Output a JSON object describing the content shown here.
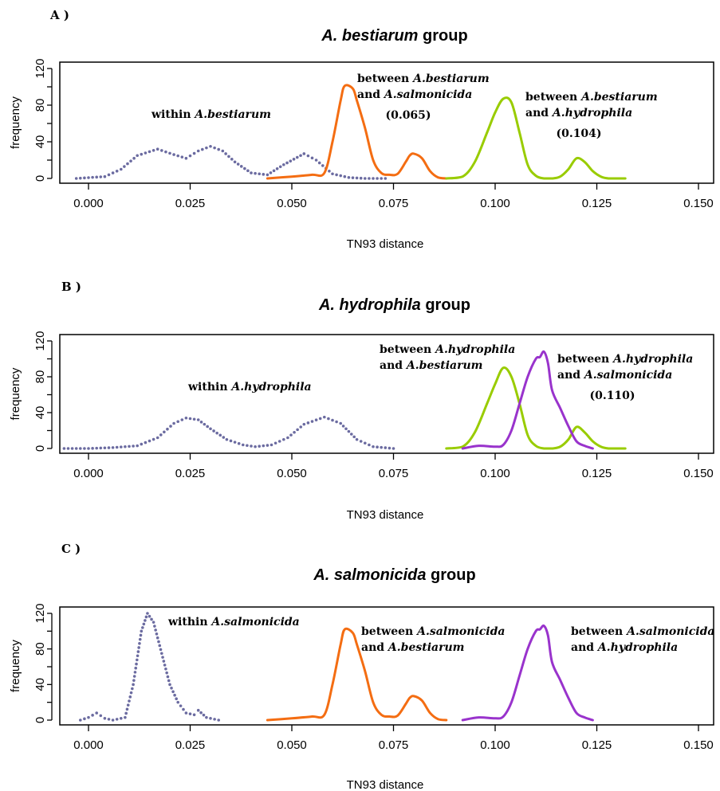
{
  "chart_data": [
    {
      "type": "line",
      "panel_label": "A )",
      "title_italic": "A. bestiarum",
      "title_rest": " group",
      "xlabel": "TN93 distance",
      "ylabel": "frequency",
      "xlim": [
        -0.005,
        0.155
      ],
      "ylim": [
        0,
        120
      ],
      "x_ticks": [
        "0.000",
        "0.025",
        "0.050",
        "0.075",
        "0.100",
        "0.125",
        "0.150"
      ],
      "y_ticks": [
        "0",
        "40",
        "80",
        "120"
      ],
      "series": [
        {
          "color": "#6b6ba0",
          "style": "dotted",
          "x": [
            -0.003,
            0.004,
            0.008,
            0.012,
            0.017,
            0.021,
            0.024,
            0.027,
            0.03,
            0.033,
            0.036,
            0.04,
            0.044,
            0.048,
            0.053,
            0.056,
            0.06,
            0.064,
            0.068,
            0.073
          ],
          "y": [
            0,
            2,
            10,
            25,
            32,
            26,
            22,
            30,
            35,
            30,
            18,
            6,
            4,
            15,
            27,
            20,
            5,
            1,
            0,
            0
          ]
        },
        {
          "color": "#f46d12",
          "style": "solid",
          "x": [
            0.044,
            0.05,
            0.055,
            0.058,
            0.06,
            0.062,
            0.063,
            0.065,
            0.066,
            0.068,
            0.07,
            0.072,
            0.074,
            0.076,
            0.078,
            0.079,
            0.08,
            0.082,
            0.084,
            0.086,
            0.088
          ],
          "y": [
            0,
            2,
            4,
            6,
            40,
            85,
            101,
            98,
            85,
            55,
            20,
            6,
            4,
            5,
            18,
            25,
            27,
            22,
            8,
            1,
            0
          ]
        },
        {
          "color": "#99cc00",
          "style": "solid",
          "x": [
            0.088,
            0.092,
            0.095,
            0.098,
            0.1,
            0.102,
            0.104,
            0.106,
            0.108,
            0.11,
            0.112,
            0.114,
            0.116,
            0.118,
            0.12,
            0.122,
            0.124,
            0.126,
            0.128,
            0.132
          ],
          "y": [
            0,
            2,
            18,
            50,
            72,
            87,
            83,
            50,
            15,
            3,
            0,
            0,
            2,
            10,
            22,
            18,
            8,
            2,
            0,
            0
          ]
        }
      ],
      "annotations": [
        {
          "lines": [
            {
              "plain": "within ",
              "italic": "A.bestiarum"
            }
          ]
        },
        {
          "lines": [
            {
              "plain": "between  ",
              "italic": "A.bestiarum"
            },
            {
              "plain": "and ",
              "italic": "A.salmonicida"
            },
            {
              "plain": "(0.065)",
              "italic": ""
            }
          ]
        },
        {
          "lines": [
            {
              "plain": "between  ",
              "italic": "A.bestiarum"
            },
            {
              "plain": "and ",
              "italic": "A.hydrophila"
            },
            {
              "plain": "(0.104)",
              "italic": ""
            }
          ]
        }
      ]
    },
    {
      "type": "line",
      "panel_label": "B )",
      "title_italic": "A. hydrophila",
      "title_rest": " group",
      "xlabel": "TN93 distance",
      "ylabel": "frequency",
      "xlim": [
        -0.005,
        0.155
      ],
      "ylim": [
        0,
        120
      ],
      "x_ticks": [
        "0.000",
        "0.025",
        "0.050",
        "0.075",
        "0.100",
        "0.125",
        "0.150"
      ],
      "y_ticks": [
        "0",
        "40",
        "80",
        "120"
      ],
      "series": [
        {
          "color": "#6b6ba0",
          "style": "dotted",
          "x": [
            -0.006,
            0.0,
            0.006,
            0.012,
            0.017,
            0.021,
            0.024,
            0.027,
            0.03,
            0.034,
            0.038,
            0.041,
            0.045,
            0.049,
            0.053,
            0.058,
            0.062,
            0.066,
            0.07,
            0.075
          ],
          "y": [
            0,
            0,
            1,
            3,
            12,
            28,
            34,
            32,
            22,
            10,
            4,
            2,
            4,
            12,
            27,
            35,
            28,
            10,
            2,
            0
          ]
        },
        {
          "color": "#99cc00",
          "style": "solid",
          "x": [
            0.088,
            0.092,
            0.095,
            0.098,
            0.1,
            0.102,
            0.104,
            0.106,
            0.108,
            0.11,
            0.112,
            0.114,
            0.116,
            0.118,
            0.12,
            0.122,
            0.124,
            0.126,
            0.128,
            0.132
          ],
          "y": [
            0,
            2,
            18,
            50,
            72,
            90,
            80,
            50,
            15,
            3,
            0,
            0,
            2,
            10,
            24,
            18,
            8,
            2,
            0,
            0
          ]
        },
        {
          "color": "#9933cc",
          "style": "solid",
          "x": [
            0.092,
            0.096,
            0.1,
            0.102,
            0.104,
            0.106,
            0.108,
            0.11,
            0.111,
            0.112,
            0.113,
            0.114,
            0.116,
            0.118,
            0.12,
            0.122,
            0.124
          ],
          "y": [
            0,
            3,
            2,
            4,
            20,
            50,
            80,
            100,
            102,
            108,
            95,
            65,
            45,
            25,
            8,
            3,
            0
          ]
        }
      ],
      "annotations": [
        {
          "lines": [
            {
              "plain": "within ",
              "italic": "A.hydrophila"
            }
          ]
        },
        {
          "lines": [
            {
              "plain": "between ",
              "italic": "A.hydrophila"
            },
            {
              "plain": "and ",
              "italic": "A.bestiarum"
            }
          ]
        },
        {
          "lines": [
            {
              "plain": "between ",
              "italic": "A.hydrophila"
            },
            {
              "plain": "and ",
              "italic": "A.salmonicida"
            },
            {
              "plain": "(0.110)",
              "italic": ""
            }
          ]
        }
      ]
    },
    {
      "type": "line",
      "panel_label": "C )",
      "title_italic": "A. salmonicida",
      "title_rest": " group",
      "xlabel": "TN93 distance",
      "ylabel": "frequency",
      "xlim": [
        -0.005,
        0.155
      ],
      "ylim": [
        0,
        120
      ],
      "x_ticks": [
        "0.000",
        "0.025",
        "0.050",
        "0.075",
        "0.100",
        "0.125",
        "0.150"
      ],
      "y_ticks": [
        "0",
        "40",
        "80",
        "120"
      ],
      "series": [
        {
          "color": "#6b6ba0",
          "style": "dotted",
          "x": [
            -0.002,
            0.0,
            0.002,
            0.004,
            0.006,
            0.009,
            0.011,
            0.013,
            0.0145,
            0.016,
            0.018,
            0.02,
            0.022,
            0.024,
            0.026,
            0.027,
            0.029,
            0.032
          ],
          "y": [
            0,
            3,
            8,
            2,
            0,
            3,
            40,
            100,
            120,
            110,
            75,
            40,
            20,
            8,
            6,
            11,
            3,
            0
          ]
        },
        {
          "color": "#f46d12",
          "style": "solid",
          "x": [
            0.044,
            0.05,
            0.055,
            0.058,
            0.06,
            0.062,
            0.063,
            0.065,
            0.066,
            0.068,
            0.07,
            0.072,
            0.074,
            0.076,
            0.078,
            0.079,
            0.08,
            0.082,
            0.084,
            0.086,
            0.088
          ],
          "y": [
            0,
            2,
            4,
            6,
            40,
            85,
            102,
            98,
            85,
            55,
            20,
            6,
            4,
            5,
            18,
            25,
            27,
            22,
            8,
            1,
            0
          ]
        },
        {
          "color": "#9933cc",
          "style": "solid",
          "x": [
            0.092,
            0.096,
            0.1,
            0.102,
            0.104,
            0.106,
            0.108,
            0.11,
            0.111,
            0.112,
            0.113,
            0.114,
            0.116,
            0.118,
            0.12,
            0.122,
            0.124
          ],
          "y": [
            0,
            3,
            2,
            4,
            20,
            50,
            80,
            100,
            102,
            106,
            95,
            65,
            45,
            25,
            8,
            3,
            0
          ]
        }
      ],
      "annotations": [
        {
          "lines": [
            {
              "plain": "within ",
              "italic": "A.salmonicida"
            }
          ]
        },
        {
          "lines": [
            {
              "plain": "between ",
              "italic": "A.salmonicida"
            },
            {
              "plain": "and ",
              "italic": "A.bestiarum"
            }
          ]
        },
        {
          "lines": [
            {
              "plain": "between ",
              "italic": "A.salmonicida"
            },
            {
              "plain": "and ",
              "italic": "A.hydrophila"
            }
          ]
        }
      ]
    }
  ]
}
